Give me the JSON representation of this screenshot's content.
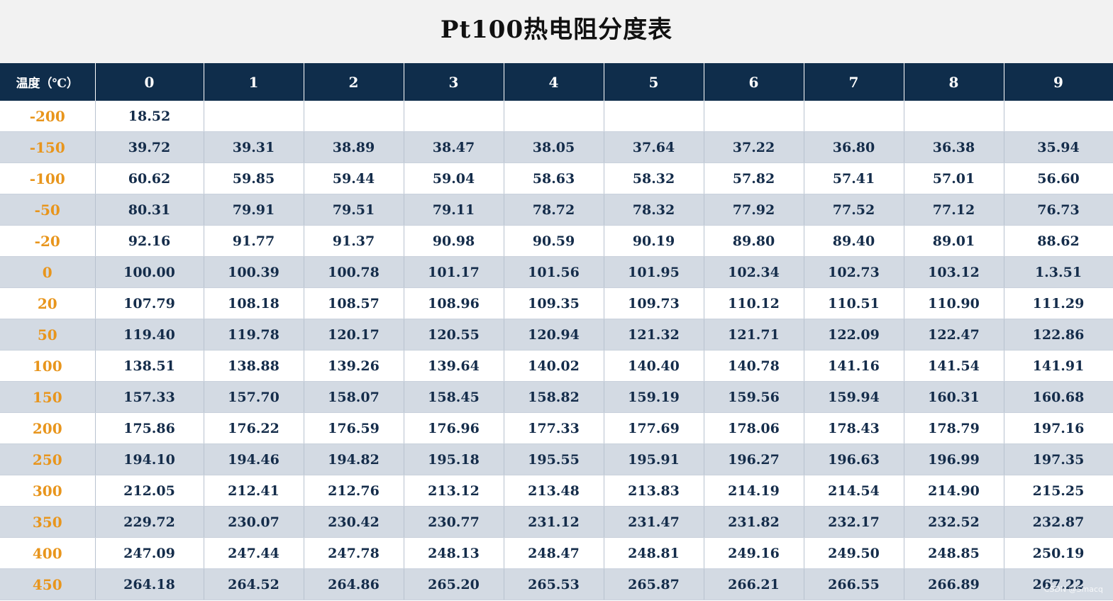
{
  "title": "Pt100热电阻分度表",
  "table": {
    "corner_header": "温度（℃）",
    "columns": [
      "0",
      "1",
      "2",
      "3",
      "4",
      "5",
      "6",
      "7",
      "8",
      "9"
    ],
    "rows": [
      {
        "temp": "-200",
        "values": [
          "18.52",
          "",
          "",
          "",
          "",
          "",
          "",
          "",
          "",
          ""
        ]
      },
      {
        "temp": "-150",
        "values": [
          "39.72",
          "39.31",
          "38.89",
          "38.47",
          "38.05",
          "37.64",
          "37.22",
          "36.80",
          "36.38",
          "35.94"
        ]
      },
      {
        "temp": "-100",
        "values": [
          "60.62",
          "59.85",
          "59.44",
          "59.04",
          "58.63",
          "58.32",
          "57.82",
          "57.41",
          "57.01",
          "56.60"
        ]
      },
      {
        "temp": "-50",
        "values": [
          "80.31",
          "79.91",
          "79.51",
          "79.11",
          "78.72",
          "78.32",
          "77.92",
          "77.52",
          "77.12",
          "76.73"
        ]
      },
      {
        "temp": "-20",
        "values": [
          "92.16",
          "91.77",
          "91.37",
          "90.98",
          "90.59",
          "90.19",
          "89.80",
          "89.40",
          "89.01",
          "88.62"
        ]
      },
      {
        "temp": "0",
        "values": [
          "100.00",
          "100.39",
          "100.78",
          "101.17",
          "101.56",
          "101.95",
          "102.34",
          "102.73",
          "103.12",
          "1.3.51"
        ]
      },
      {
        "temp": "20",
        "values": [
          "107.79",
          "108.18",
          "108.57",
          "108.96",
          "109.35",
          "109.73",
          "110.12",
          "110.51",
          "110.90",
          "111.29"
        ]
      },
      {
        "temp": "50",
        "values": [
          "119.40",
          "119.78",
          "120.17",
          "120.55",
          "120.94",
          "121.32",
          "121.71",
          "122.09",
          "122.47",
          "122.86"
        ]
      },
      {
        "temp": "100",
        "values": [
          "138.51",
          "138.88",
          "139.26",
          "139.64",
          "140.02",
          "140.40",
          "140.78",
          "141.16",
          "141.54",
          "141.91"
        ]
      },
      {
        "temp": "150",
        "values": [
          "157.33",
          "157.70",
          "158.07",
          "158.45",
          "158.82",
          "159.19",
          "159.56",
          "159.94",
          "160.31",
          "160.68"
        ]
      },
      {
        "temp": "200",
        "values": [
          "175.86",
          "176.22",
          "176.59",
          "176.96",
          "177.33",
          "177.69",
          "178.06",
          "178.43",
          "178.79",
          "197.16"
        ]
      },
      {
        "temp": "250",
        "values": [
          "194.10",
          "194.46",
          "194.82",
          "195.18",
          "195.55",
          "195.91",
          "196.27",
          "196.63",
          "196.99",
          "197.35"
        ]
      },
      {
        "temp": "300",
        "values": [
          "212.05",
          "212.41",
          "212.76",
          "213.12",
          "213.48",
          "213.83",
          "214.19",
          "214.54",
          "214.90",
          "215.25"
        ]
      },
      {
        "temp": "350",
        "values": [
          "229.72",
          "230.07",
          "230.42",
          "230.77",
          "231.12",
          "231.47",
          "231.82",
          "232.17",
          "232.52",
          "232.87"
        ]
      },
      {
        "temp": "400",
        "values": [
          "247.09",
          "247.44",
          "247.78",
          "248.13",
          "248.47",
          "248.81",
          "249.16",
          "249.50",
          "248.85",
          "250.19"
        ]
      },
      {
        "temp": "450",
        "values": [
          "264.18",
          "264.52",
          "264.86",
          "265.20",
          "265.53",
          "265.87",
          "266.21",
          "266.55",
          "266.89",
          "267.22"
        ]
      }
    ]
  },
  "watermark": "CSDN @Smacq",
  "colors": {
    "header_bg": "#0f2d4b",
    "header_text": "#ffffff",
    "temp_text": "#e8951c",
    "value_text": "#142c4a",
    "row_alt_bg": "#d3dae3",
    "title_bg": "#f2f2f2"
  }
}
